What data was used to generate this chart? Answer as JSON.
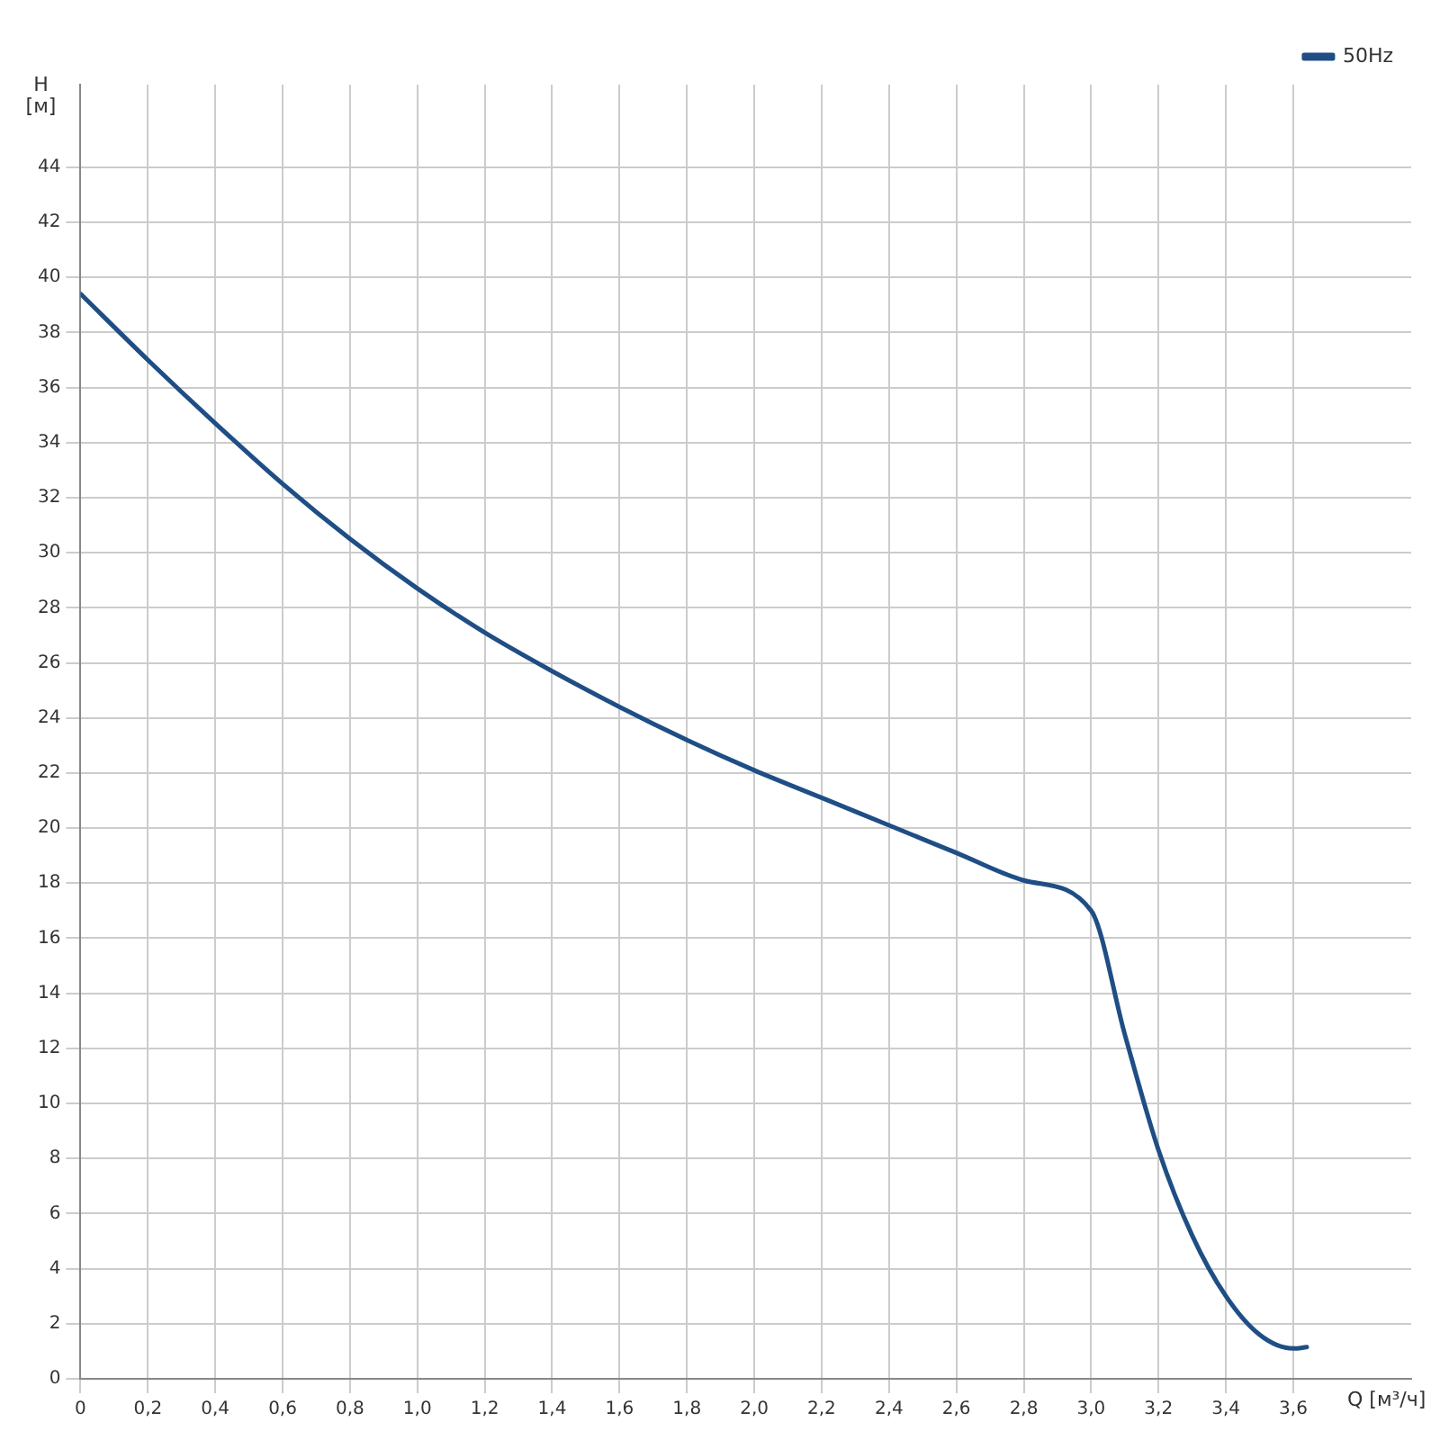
{
  "chart_data": {
    "type": "line",
    "xlabel": "Q [м³/ч]",
    "ylabel": "H [м]",
    "series": [
      {
        "name": "50Hz",
        "color": "#1f4e85",
        "x": [
          0,
          0.2,
          0.4,
          0.6,
          0.8,
          1.0,
          1.2,
          1.4,
          1.6,
          1.8,
          2.0,
          2.2,
          2.4,
          2.6,
          2.8,
          3.0,
          3.1,
          3.2,
          3.3,
          3.4,
          3.5,
          3.6,
          3.64
        ],
        "values": [
          39.4,
          37.0,
          34.7,
          32.5,
          30.5,
          28.7,
          27.1,
          25.7,
          24.4,
          23.2,
          22.1,
          21.1,
          20.1,
          19.1,
          18.1,
          17.0,
          12.5,
          8.3,
          5.2,
          3.0,
          1.6,
          1.1,
          1.15
        ]
      }
    ],
    "xlim": [
      0,
      3.95
    ],
    "ylim": [
      0,
      47
    ],
    "xticks": [
      0,
      {
        "value": 0.2,
        "label": "0,2"
      },
      {
        "value": 0.4,
        "label": "0,4"
      },
      {
        "value": 0.6,
        "label": "0,6"
      },
      {
        "value": 0.8,
        "label": "0,8"
      },
      {
        "value": 1.0,
        "label": "1,0"
      },
      {
        "value": 1.2,
        "label": "1,2"
      },
      {
        "value": 1.4,
        "label": "1,4"
      },
      {
        "value": 1.6,
        "label": "1,6"
      },
      {
        "value": 1.8,
        "label": "1,8"
      },
      {
        "value": 2.0,
        "label": "2,0"
      },
      {
        "value": 2.2,
        "label": "2,2"
      },
      {
        "value": 2.4,
        "label": "2,4"
      },
      {
        "value": 2.6,
        "label": "2,6"
      },
      {
        "value": 2.8,
        "label": "2,8"
      },
      {
        "value": 3.0,
        "label": "3,0"
      },
      {
        "value": 3.2,
        "label": "3,2"
      },
      {
        "value": 3.4,
        "label": "3,4"
      },
      {
        "value": 3.6,
        "label": "3,6"
      }
    ],
    "yticks": [
      0,
      2,
      4,
      6,
      8,
      10,
      12,
      14,
      16,
      18,
      20,
      22,
      24,
      26,
      28,
      30,
      32,
      34,
      36,
      38,
      40,
      42,
      44
    ],
    "grid": true,
    "legend": "top right",
    "marker": "none",
    "line_style": "solid"
  }
}
